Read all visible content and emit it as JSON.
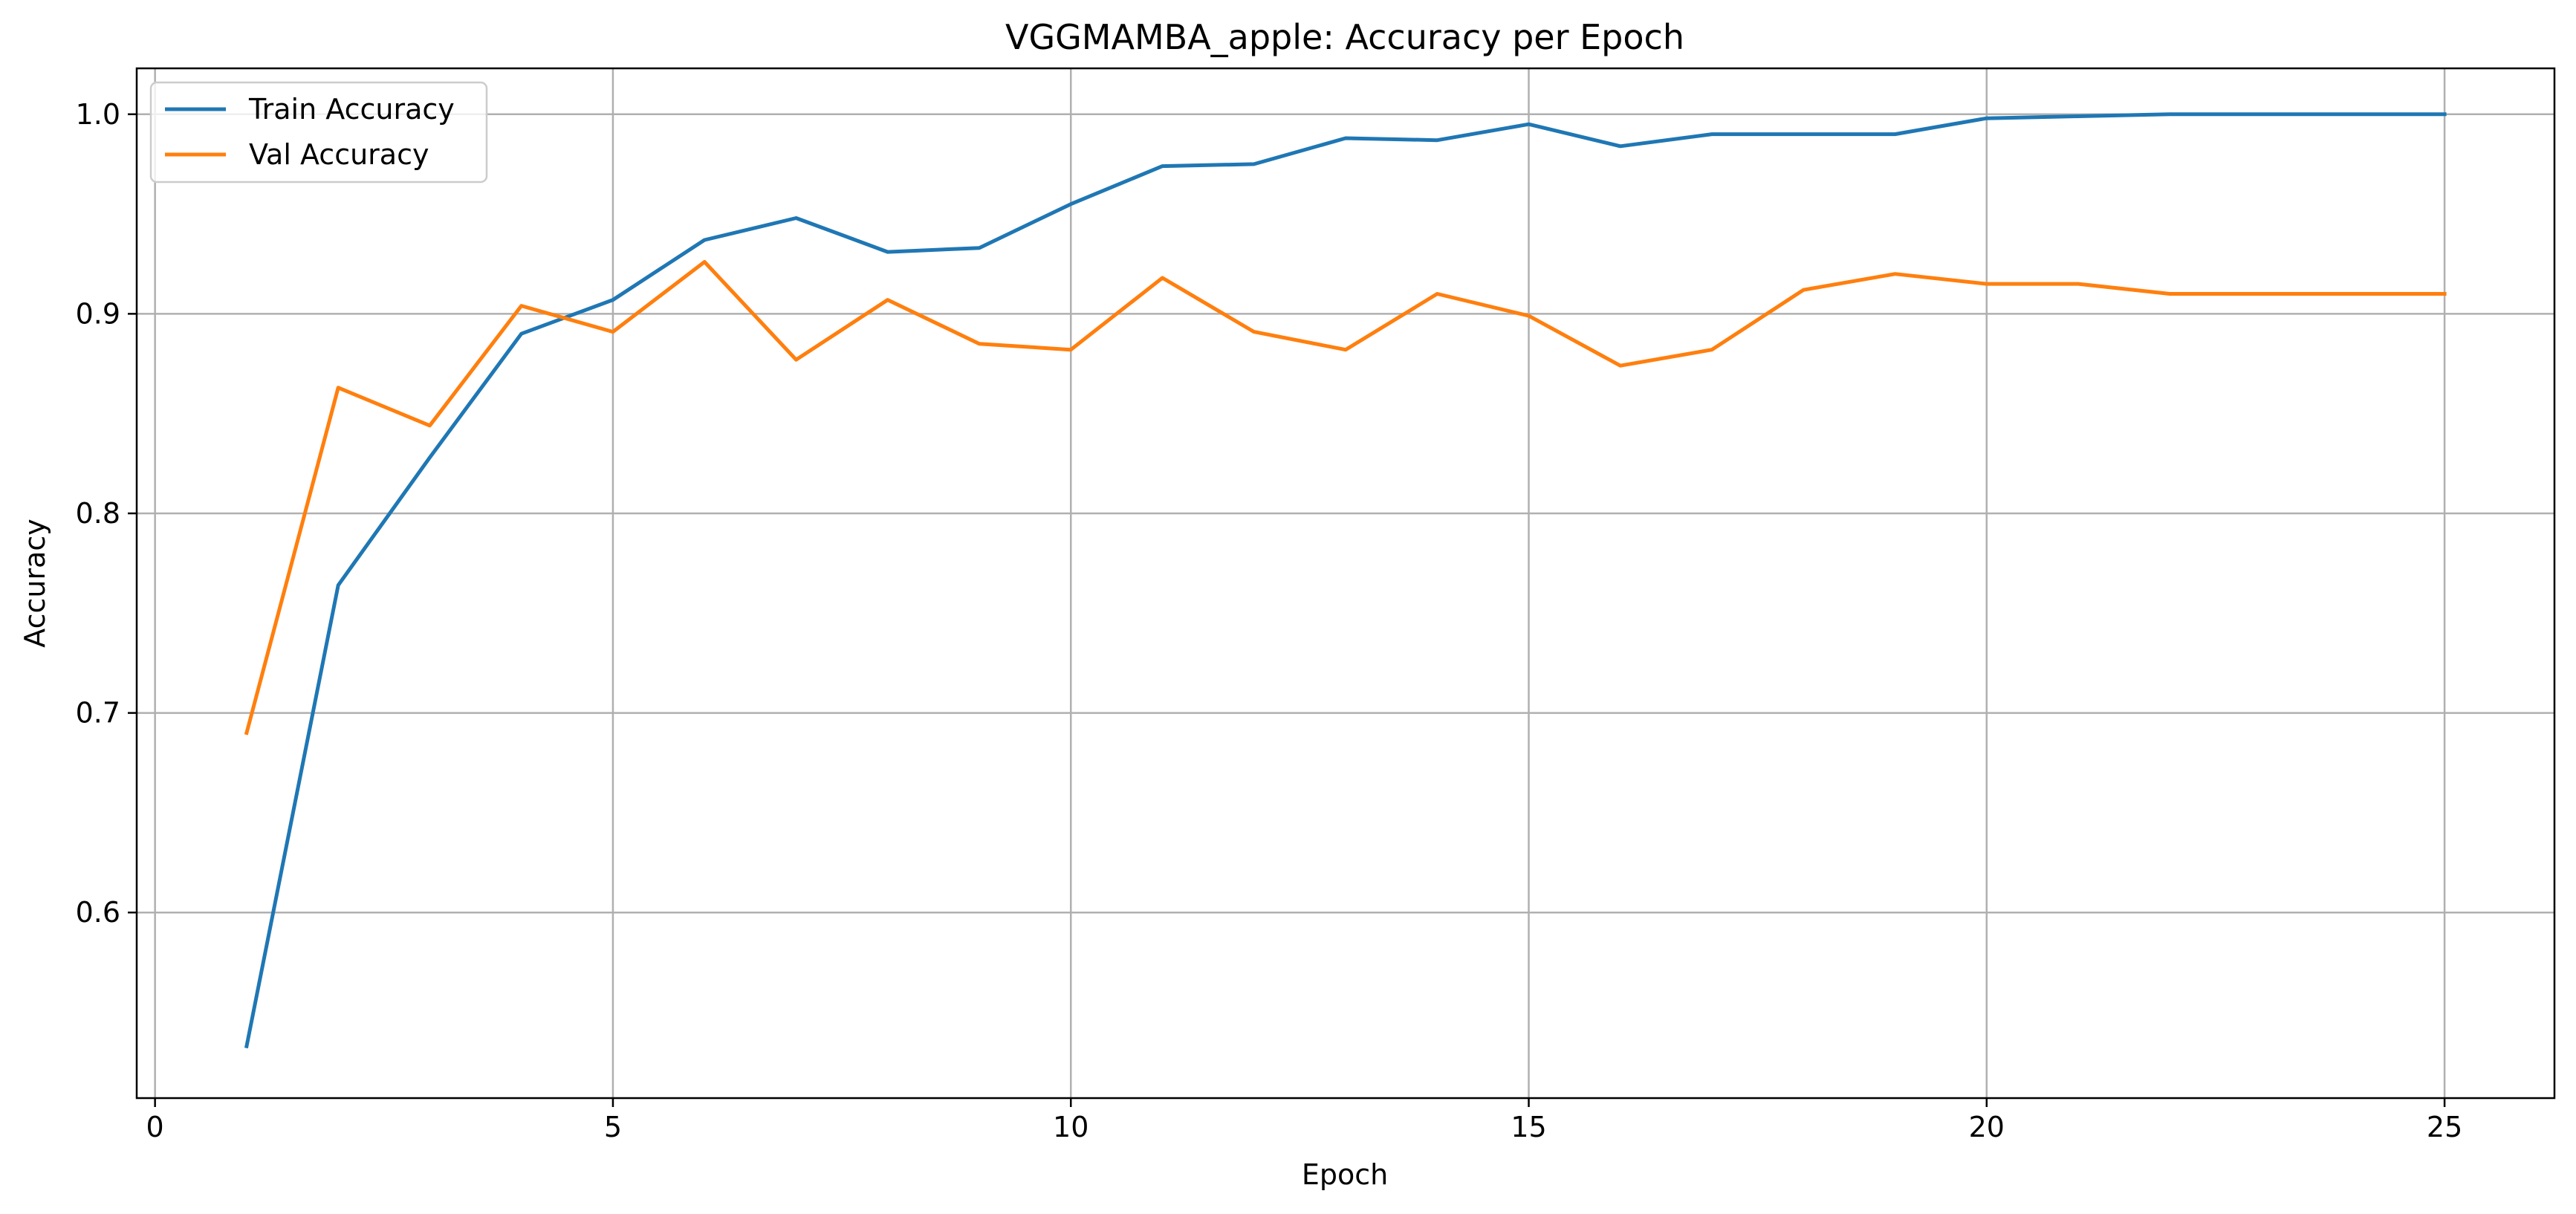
{
  "chart_data": {
    "type": "line",
    "title": "VGGMAMBA_apple: Accuracy per Epoch",
    "xlabel": "Epoch",
    "ylabel": "Accuracy",
    "xlim": [
      -0.2,
      26.2
    ],
    "ylim": [
      0.507,
      1.023
    ],
    "xticks": [
      0,
      5,
      10,
      15,
      20,
      25
    ],
    "yticks": [
      0.6,
      0.7,
      0.8,
      0.9,
      1.0
    ],
    "ytick_labels": [
      "0.6",
      "0.7",
      "0.8",
      "0.9",
      "1.0"
    ],
    "grid": true,
    "legend_position": "upper left",
    "x": [
      1,
      2,
      3,
      4,
      5,
      6,
      7,
      8,
      9,
      10,
      11,
      12,
      13,
      14,
      15,
      16,
      17,
      18,
      19,
      20,
      21,
      22,
      23,
      24,
      25
    ],
    "series": [
      {
        "name": "Train Accuracy",
        "color": "#1f77b4",
        "values": [
          0.533,
          0.764,
          0.828,
          0.89,
          0.907,
          0.937,
          0.948,
          0.931,
          0.933,
          0.955,
          0.974,
          0.975,
          0.988,
          0.987,
          0.995,
          0.984,
          0.99,
          0.99,
          0.99,
          0.998,
          0.999,
          1.0,
          1.0,
          1.0,
          1.0
        ]
      },
      {
        "name": "Val Accuracy",
        "color": "#ff7f0e",
        "values": [
          0.69,
          0.863,
          0.844,
          0.904,
          0.891,
          0.926,
          0.877,
          0.907,
          0.885,
          0.882,
          0.918,
          0.891,
          0.882,
          0.91,
          0.899,
          0.874,
          0.882,
          0.912,
          0.92,
          0.915,
          0.915,
          0.91,
          0.91,
          0.91,
          0.91
        ]
      }
    ]
  }
}
